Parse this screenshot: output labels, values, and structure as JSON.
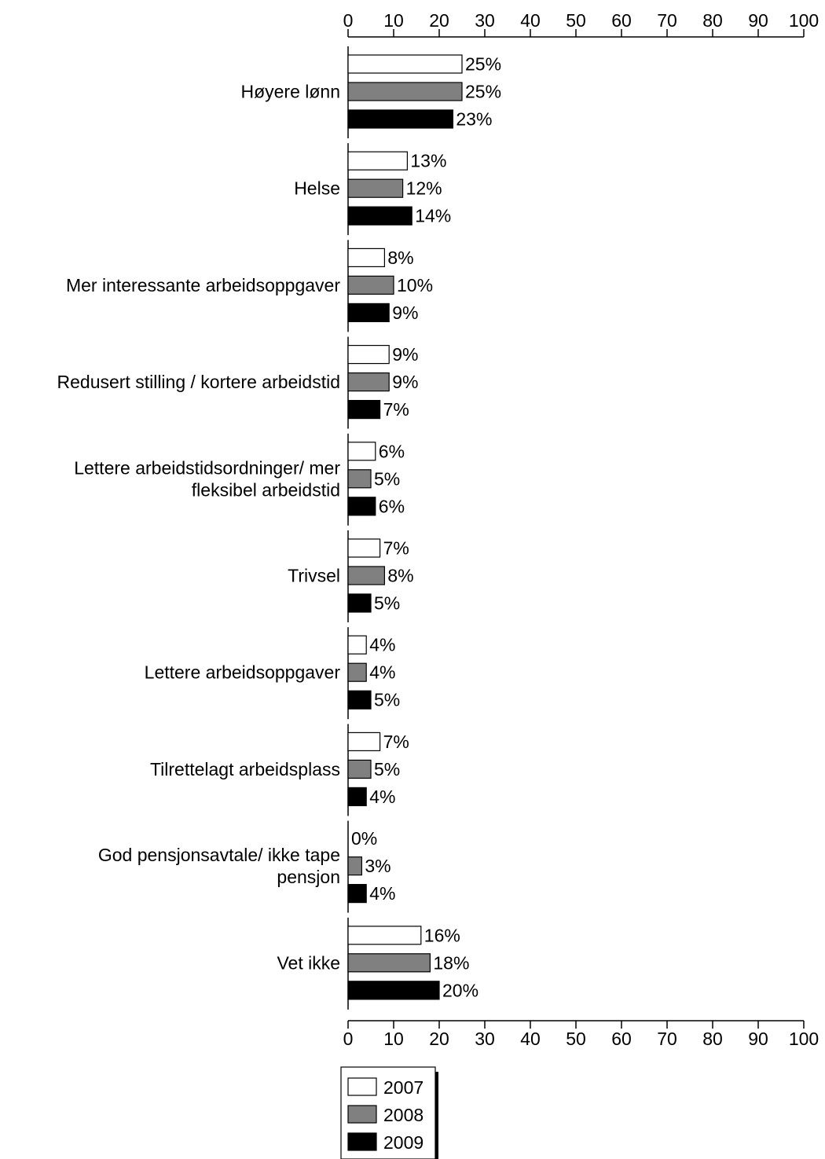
{
  "chart_data": {
    "type": "bar",
    "orientation": "horizontal",
    "title": "",
    "xlabel": "",
    "ylabel": "",
    "xlim": [
      0,
      100
    ],
    "ticks": [
      "0",
      "10",
      "20",
      "30",
      "40",
      "50",
      "60",
      "70",
      "80",
      "90",
      "100"
    ],
    "axis_position": "top-and-bottom",
    "grid": false,
    "categories": [
      [
        "Høyere lønn"
      ],
      [
        "Helse"
      ],
      [
        "Mer interessante arbeidsoppgaver"
      ],
      [
        "Redusert stilling / kortere arbeidstid"
      ],
      [
        "Lettere arbeidstidsordninger/ mer",
        "fleksibel arbeidstid"
      ],
      [
        "Trivsel"
      ],
      [
        "Lettere arbeidsoppgaver"
      ],
      [
        "Tilrettelagt arbeidsplass"
      ],
      [
        "God pensjonsavtale/ ikke tape",
        "pensjon"
      ],
      [
        "Vet ikke"
      ]
    ],
    "series": [
      {
        "name": "2007",
        "color": "#ffffff",
        "values": [
          25,
          13,
          8,
          9,
          6,
          7,
          4,
          7,
          0,
          16
        ],
        "labels": [
          "25%",
          "13%",
          "8%",
          "9%",
          "6%",
          "7%",
          "4%",
          "7%",
          "0%",
          "16%"
        ]
      },
      {
        "name": "2008",
        "color": "#808080",
        "values": [
          25,
          12,
          10,
          9,
          5,
          8,
          4,
          5,
          3,
          18
        ],
        "labels": [
          "25%",
          "12%",
          "10%",
          "9%",
          "5%",
          "8%",
          "4%",
          "5%",
          "3%",
          "18%"
        ]
      },
      {
        "name": "2009",
        "color": "#000000",
        "values": [
          23,
          14,
          9,
          7,
          6,
          5,
          5,
          4,
          4,
          20
        ],
        "labels": [
          "23%",
          "14%",
          "9%",
          "7%",
          "6%",
          "5%",
          "5%",
          "4%",
          "4%",
          "20%"
        ]
      }
    ],
    "legend": {
      "position": "bottom-center"
    }
  }
}
